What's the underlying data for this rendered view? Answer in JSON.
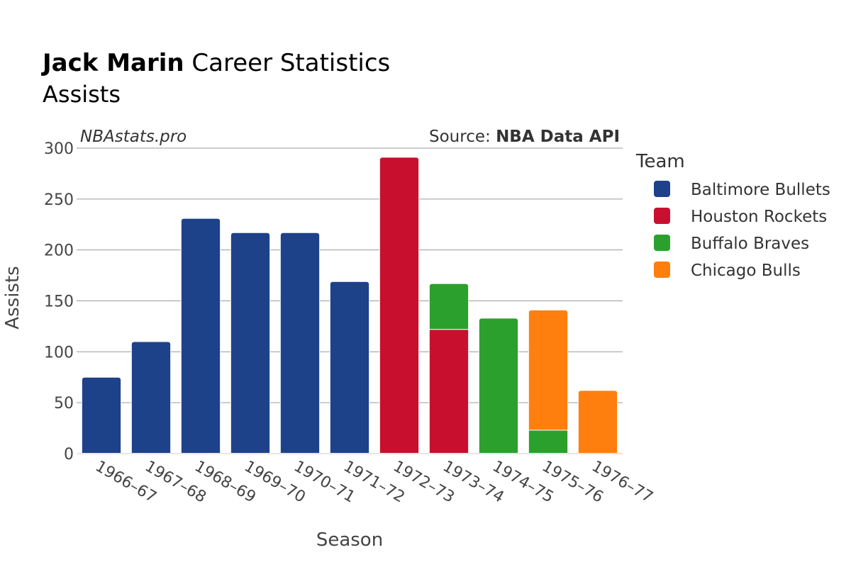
{
  "title": {
    "player": "Jack Marin",
    "rest": "Career Statistics",
    "subtitle": "Assists"
  },
  "watermark": "NBAstats.pro",
  "source": {
    "label": "Source:",
    "name": "NBA Data API"
  },
  "colors": {
    "Baltimore Bullets": "#1d428a",
    "Houston Rockets": "#c8102e",
    "Buffalo Braves": "#2ca02c",
    "Chicago Bulls": "#ff7f0e"
  },
  "chart_data": {
    "type": "bar",
    "stacked": true,
    "xlabel": "Season",
    "ylabel": "Assists",
    "ylim": [
      0,
      300
    ],
    "yticks": [
      0,
      50,
      100,
      150,
      200,
      250,
      300
    ],
    "categories": [
      "1966–67",
      "1967–68",
      "1968–69",
      "1969–70",
      "1970–71",
      "1971–72",
      "1972–73",
      "1973–74",
      "1974–75",
      "1975–76",
      "1976–77"
    ],
    "series": [
      {
        "name": "Baltimore Bullets",
        "values": [
          75,
          110,
          231,
          217,
          217,
          169,
          0,
          0,
          0,
          0,
          0
        ]
      },
      {
        "name": "Houston Rockets",
        "values": [
          0,
          0,
          0,
          0,
          0,
          0,
          291,
          122,
          0,
          0,
          0
        ]
      },
      {
        "name": "Buffalo Braves",
        "values": [
          0,
          0,
          0,
          0,
          0,
          0,
          0,
          45,
          133,
          23,
          0
        ]
      },
      {
        "name": "Chicago Bulls",
        "values": [
          0,
          0,
          0,
          0,
          0,
          0,
          0,
          0,
          0,
          118,
          62
        ]
      }
    ],
    "legend": {
      "title": "Team",
      "position": "right"
    }
  }
}
